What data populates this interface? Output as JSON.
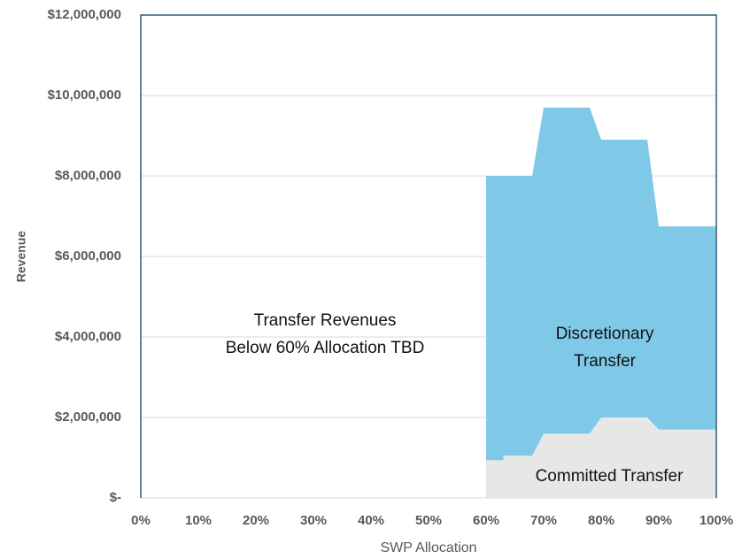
{
  "chart_data": {
    "type": "stacked_area",
    "x_label": "SWP Allocation",
    "y_label": "Revenue",
    "x": [
      60,
      63,
      63,
      68,
      70,
      78,
      80,
      88,
      90,
      100
    ],
    "series": [
      {
        "color": "#e7e7e7",
        "values": [
          940000,
          940000,
          1050000,
          1050000,
          1600000,
          1600000,
          2000000,
          2000000,
          1700000,
          1700000
        ]
      },
      {
        "color": "#80c8e8",
        "values": [
          7060000,
          7060000,
          6950000,
          6950000,
          8100000,
          8100000,
          6900000,
          6900000,
          5050000,
          5050000
        ]
      }
    ],
    "xlim": [
      0,
      100
    ],
    "xticks": [
      {
        "value": 0,
        "label": "0%"
      },
      {
        "value": 10,
        "label": "10%"
      },
      {
        "value": 20,
        "label": "20%"
      },
      {
        "value": 30,
        "label": "30%"
      },
      {
        "value": 40,
        "label": "40%"
      },
      {
        "value": 50,
        "label": "50%"
      },
      {
        "value": 60,
        "label": "60%"
      },
      {
        "value": 70,
        "label": "70%"
      },
      {
        "value": 80,
        "label": "80%"
      },
      {
        "value": 90,
        "label": "90%"
      },
      {
        "value": 100,
        "label": "100%"
      }
    ],
    "ylim": [
      0,
      12000000
    ],
    "yticks": [
      {
        "value": 0,
        "label": "$-"
      },
      {
        "value": 2000000,
        "label": "$2,000,000"
      },
      {
        "value": 4000000,
        "label": "$4,000,000"
      },
      {
        "value": 6000000,
        "label": "$6,000,000"
      },
      {
        "value": 8000000,
        "label": "$8,000,000"
      },
      {
        "value": 10000000,
        "label": "$10,000,000"
      },
      {
        "value": 12000000,
        "label": "$12,000,000"
      }
    ],
    "grid": true,
    "annotations": [
      {
        "lines": [
          "Transfer Revenues",
          "Below 60% Allocation TBD"
        ]
      },
      {
        "lines": [
          "Discretionary",
          "Transfer"
        ]
      },
      {
        "lines": [
          "Committed Transfer"
        ]
      }
    ]
  }
}
